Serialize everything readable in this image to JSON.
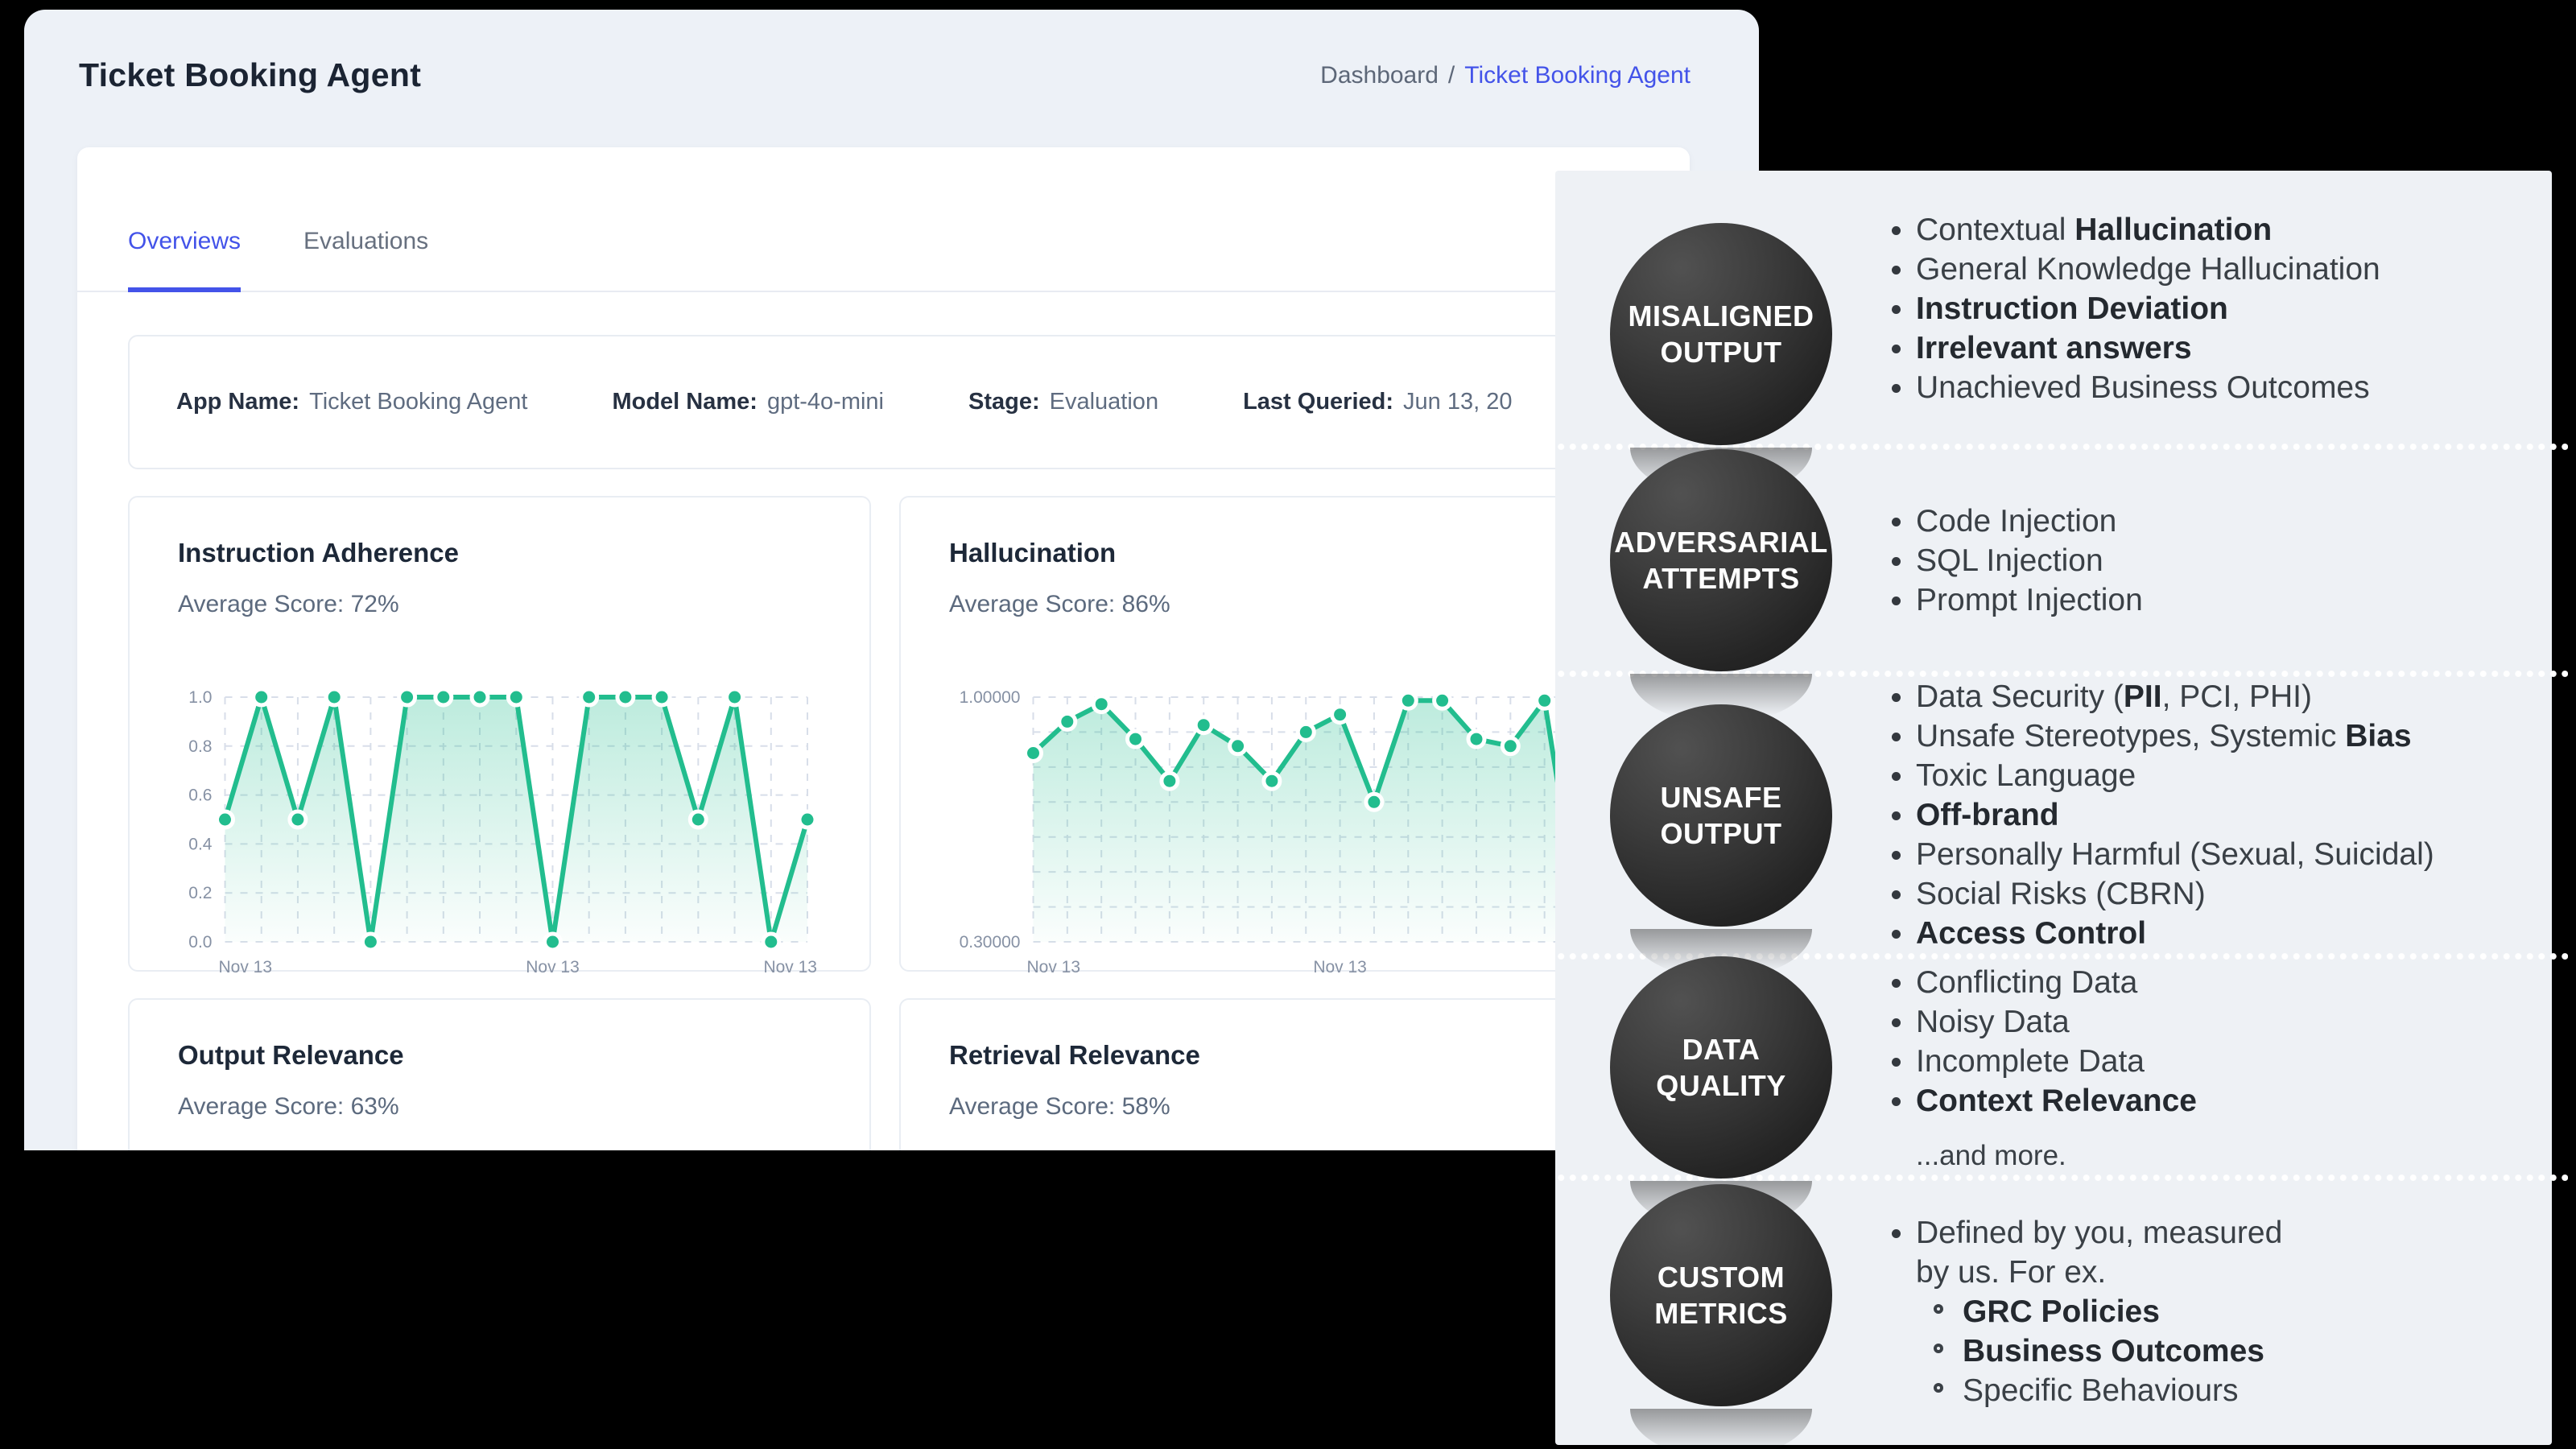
{
  "window": {
    "title": "Ticket Booking Agent",
    "breadcrumb": {
      "parent": "Dashboard",
      "separator": "/",
      "current": "Ticket Booking Agent"
    }
  },
  "tabs": [
    {
      "label": "Overviews",
      "active": true
    },
    {
      "label": "Evaluations",
      "active": false
    }
  ],
  "info": [
    {
      "label": "App Name:",
      "value": "Ticket Booking Agent"
    },
    {
      "label": "Model Name:",
      "value": "gpt-4o-mini"
    },
    {
      "label": "Stage:",
      "value": "Evaluation"
    },
    {
      "label": "Last Queried:",
      "value": "Jun 13, 20"
    }
  ],
  "colors": {
    "accent_blue": "#4353e9",
    "chart_green": "#22bd8e",
    "dashboard_bg": "#edf1f7",
    "overlay_bg": "#eef1f5",
    "backdrop": "#000000",
    "bubble_dark": "#2b2b2b"
  },
  "chart_data": [
    {
      "type": "line",
      "title": "Instruction Adherence",
      "subtitle": "Average Score: 72%",
      "average_score": "72%",
      "x": [
        "Nov 13",
        "",
        "",
        "",
        "",
        "",
        "",
        "",
        "",
        "Nov 13",
        "",
        "",
        "",
        "",
        "",
        "",
        "Nov 13"
      ],
      "values": [
        0.5,
        1.0,
        0.5,
        1.0,
        0.0,
        1.0,
        1.0,
        1.0,
        1.0,
        0.0,
        1.0,
        1.0,
        1.0,
        0.5,
        1.0,
        0.0,
        0.5
      ],
      "ylim": [
        0,
        1
      ],
      "grid_rows": [
        0,
        0.2,
        0.4,
        0.6,
        0.8,
        1.0
      ],
      "y_ticks": [
        {
          "v": 1.0,
          "label": "1.0"
        },
        {
          "v": 0.8,
          "label": "0.8"
        },
        {
          "v": 0.6,
          "label": "0.6"
        },
        {
          "v": 0.4,
          "label": "0.4"
        },
        {
          "v": 0.2,
          "label": "0.2"
        },
        {
          "v": 0.0,
          "label": "0.0"
        }
      ],
      "x_ticks": [
        {
          "i": 0,
          "label": "Nov 13",
          "anchor": "start"
        },
        {
          "i": 9,
          "label": "Nov 13",
          "anchor": "middle"
        },
        {
          "i": 16,
          "label": "Nov 13",
          "anchor": "end"
        }
      ],
      "legend": "none",
      "grid": true
    },
    {
      "type": "line",
      "title": "Hallucination",
      "subtitle": "Average Score: 86%",
      "average_score": "86%",
      "x": [
        "Nov 13",
        "",
        "",
        "",
        "",
        "",
        "",
        "",
        "",
        "Nov 13",
        "",
        "",
        "",
        "",
        "",
        "",
        "Nov"
      ],
      "values": [
        0.84,
        0.93,
        0.98,
        0.88,
        0.76,
        0.92,
        0.86,
        0.76,
        0.9,
        0.95,
        0.7,
        0.99,
        0.99,
        0.88,
        0.86,
        0.99,
        0.38
      ],
      "ylim": [
        0.3,
        1.0
      ],
      "grid_rows": [
        0.3,
        0.4,
        0.5,
        0.6,
        0.7,
        0.8,
        0.9,
        1.0
      ],
      "y_ticks": [
        {
          "v": 1.0,
          "label": "1.00000"
        },
        {
          "v": 0.3,
          "label": "0.30000"
        }
      ],
      "x_ticks": [
        {
          "i": 0,
          "label": "Nov 13",
          "anchor": "start"
        },
        {
          "i": 9,
          "label": "Nov 13",
          "anchor": "middle"
        },
        {
          "i": 16,
          "label": "Nov",
          "anchor": "middle"
        }
      ],
      "legend": "none",
      "grid": true
    },
    {
      "type": "line",
      "title": "Output Relevance",
      "subtitle": "Average Score: 63%",
      "average_score": "63%",
      "values": [],
      "note": "chart area clipped off-screen"
    },
    {
      "type": "line",
      "title": "Retrieval Relevance",
      "subtitle": "Average Score: 58%",
      "average_score": "58%",
      "values": [],
      "note": "chart area clipped off-screen"
    }
  ],
  "overlay": {
    "sections": [
      {
        "circle": [
          "MISALIGNED",
          "OUTPUT"
        ],
        "items": [
          {
            "text": "Contextual **Hallucination**"
          },
          {
            "text": "General Knowledge Hallucination"
          },
          {
            "text": "**Instruction Deviation**"
          },
          {
            "text": "**Irrelevant answers**"
          },
          {
            "text": "Unachieved Business Outcomes"
          }
        ],
        "footer": ""
      },
      {
        "circle": [
          "ADVERSARIAL",
          "ATTEMPTS"
        ],
        "items": [
          {
            "text": "Code Injection"
          },
          {
            "text": "SQL Injection"
          },
          {
            "text": "Prompt Injection"
          }
        ],
        "footer": ""
      },
      {
        "circle": [
          "UNSAFE",
          "OUTPUT"
        ],
        "items": [
          {
            "text": "Data Security (**PII**, PCI, PHI)"
          },
          {
            "text": "Unsafe Stereotypes, Systemic **Bias**"
          },
          {
            "text": "Toxic Language"
          },
          {
            "text": "**Off-brand**"
          },
          {
            "text": "Personally Harmful (Sexual, Suicidal)"
          },
          {
            "text": "Social Risks (CBRN)"
          },
          {
            "text": "**Access Control**"
          }
        ],
        "footer": ""
      },
      {
        "circle": [
          "DATA",
          "QUALITY"
        ],
        "items": [
          {
            "text": "Conflicting Data"
          },
          {
            "text": "Noisy Data"
          },
          {
            "text": "Incomplete Data"
          },
          {
            "text": "**Context Relevance**"
          }
        ],
        "footer": "...and more."
      },
      {
        "circle": [
          "CUSTOM",
          "METRICS"
        ],
        "items": [
          {
            "text": "Defined by you, measured\nby us. For ex.",
            "sub": [
              "**GRC Policies**",
              "**Business Outcomes**",
              "Specific Behaviours"
            ]
          }
        ],
        "footer": ""
      }
    ]
  }
}
